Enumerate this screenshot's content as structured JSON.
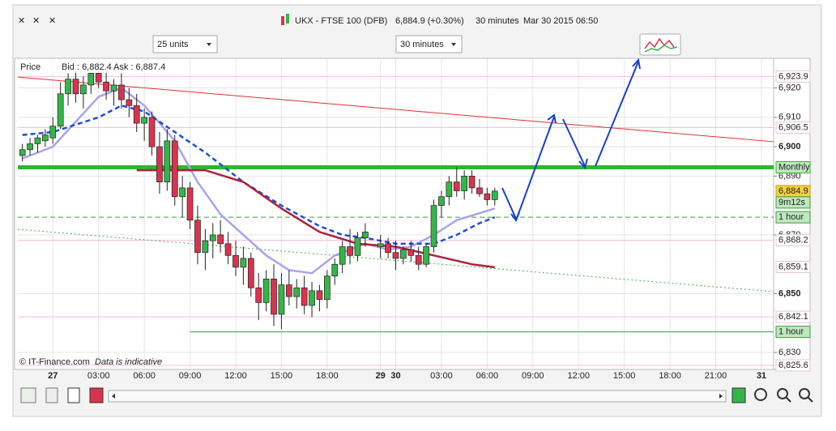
{
  "header": {
    "symbol": "UKX - FTSE 100 (DFB)",
    "quote": "6,884.9 (+0.30%)",
    "interval": "30 minutes",
    "timestamp": "Mar 30 2015 06:50"
  },
  "controls": {
    "units": "25 units",
    "interval": "30 minutes"
  },
  "chart_data": {
    "type": "candlestick",
    "legend": {
      "label": "Price",
      "bid": "Bid : 6,882.4",
      "ask": "Ask : 6,887.4"
    },
    "footer": {
      "copyright": "© IT-Finance.com",
      "note": "Data is indicative"
    },
    "xlim": [
      -4.6,
      94.6
    ],
    "ylim": [
      6824.5,
      6929.8
    ],
    "xticks": [
      {
        "value": 0,
        "label": "27"
      },
      {
        "value": 6,
        "label": "03:00"
      },
      {
        "value": 12,
        "label": "06:00"
      },
      {
        "value": 18,
        "label": "09:00"
      },
      {
        "value": 24,
        "label": "12:00"
      },
      {
        "value": 30,
        "label": "15:00"
      },
      {
        "value": 36,
        "label": "18:00"
      },
      {
        "value": 43,
        "label": "29"
      },
      {
        "value": 45,
        "label": "30"
      },
      {
        "value": 51,
        "label": "03:00"
      },
      {
        "value": 57,
        "label": "06:00"
      },
      {
        "value": 63,
        "label": "09:00"
      },
      {
        "value": 69,
        "label": "12:00"
      },
      {
        "value": 75,
        "label": "15:00"
      },
      {
        "value": 81,
        "label": "18:00"
      },
      {
        "value": 87,
        "label": "21:00"
      },
      {
        "value": 93,
        "label": "31"
      }
    ],
    "yticks": [
      {
        "value": 6920,
        "label": "6,920"
      },
      {
        "value": 6910,
        "label": "6,910"
      },
      {
        "value": 6900,
        "label": "6,900"
      },
      {
        "value": 6890,
        "label": "6,890"
      },
      {
        "value": 6870,
        "label": "6,870"
      },
      {
        "value": 6850,
        "label": "6,850"
      },
      {
        "value": 6830,
        "label": "6,830"
      }
    ],
    "bold_yticks": [
      6900,
      6850
    ],
    "grid": true,
    "up_color": "#35b549",
    "down_color": "#d9344f",
    "candles": {
      "x": [
        -4,
        -3,
        -2,
        -1,
        0,
        1,
        2,
        3,
        4,
        5,
        6,
        7,
        8,
        9,
        10,
        11,
        12,
        13,
        14,
        15,
        16,
        17,
        18,
        19,
        20,
        21,
        22,
        23,
        24,
        25,
        26,
        27,
        28,
        29,
        30,
        31,
        32,
        33,
        34,
        35,
        36,
        37,
        38,
        39,
        40,
        41,
        43,
        44,
        45,
        46,
        47,
        48,
        49,
        50,
        51,
        52,
        53,
        54,
        55,
        56,
        57,
        58
      ],
      "open": [
        6897,
        6899,
        6901,
        6902,
        6903,
        6907,
        6918,
        6923,
        6918,
        6921,
        6925,
        6922,
        6919,
        6921,
        6916,
        6914,
        6908,
        6910,
        6900,
        6888,
        6902,
        6883,
        6886,
        6875,
        6864,
        6868,
        6870,
        6867,
        6863,
        6859,
        6862,
        6852,
        6847,
        6855,
        6843,
        6853,
        6849,
        6852,
        6846,
        6851,
        6848,
        6856,
        6860,
        6866,
        6863,
        6869,
        6866,
        6867,
        6864,
        6862,
        6865,
        6863,
        6860,
        6866,
        6880,
        6883,
        6888,
        6885,
        6890,
        6886,
        6884,
        6882
      ],
      "high": [
        6901,
        6903,
        6904,
        6906,
        6910,
        6922,
        6925,
        6926,
        6924,
        6928,
        6929,
        6926,
        6923,
        6925,
        6920,
        6918,
        6913,
        6912,
        6905,
        6906,
        6904,
        6890,
        6888,
        6880,
        6872,
        6874,
        6875,
        6871,
        6868,
        6866,
        6864,
        6857,
        6858,
        6860,
        6857,
        6858,
        6855,
        6856,
        6854,
        6853,
        6858,
        6862,
        6868,
        6872,
        6871,
        6874,
        6870,
        6869,
        6868,
        6866,
        6868,
        6866,
        6867,
        6882,
        6885,
        6890,
        6893,
        6892,
        6892,
        6889,
        6886,
        6886
      ],
      "low": [
        6895,
        6897,
        6898,
        6900,
        6901,
        6906,
        6914,
        6915,
        6913,
        6918,
        6920,
        6916,
        6914,
        6913,
        6910,
        6905,
        6902,
        6897,
        6884,
        6885,
        6880,
        6876,
        6872,
        6860,
        6858,
        6862,
        6864,
        6860,
        6856,
        6853,
        6849,
        6841,
        6844,
        6839,
        6838,
        6846,
        6845,
        6843,
        6842,
        6844,
        6845,
        6853,
        6857,
        6860,
        6861,
        6866,
        6862,
        6862,
        6858,
        6860,
        6861,
        6858,
        6859,
        6864,
        6876,
        6880,
        6883,
        6882,
        6884,
        6883,
        6880,
        6880
      ],
      "close": [
        6899,
        6901,
        6903,
        6904,
        6907,
        6918,
        6923,
        6918,
        6921,
        6925,
        6922,
        6919,
        6921,
        6916,
        6914,
        6908,
        6910,
        6900,
        6888,
        6902,
        6883,
        6886,
        6875,
        6864,
        6868,
        6870,
        6867,
        6863,
        6859,
        6862,
        6852,
        6847,
        6855,
        6843,
        6853,
        6849,
        6852,
        6846,
        6851,
        6848,
        6856,
        6860,
        6866,
        6863,
        6869,
        6871,
        6867,
        6864,
        6862,
        6865,
        6863,
        6860,
        6866,
        6880,
        6883,
        6888,
        6885,
        6890,
        6886,
        6884,
        6882,
        6884.9
      ]
    },
    "overlays": [
      {
        "color": "#a9a3ea",
        "style": "solid",
        "x": [
          -4,
          0,
          6,
          9,
          12,
          16,
          19,
          22,
          25,
          28,
          31,
          34,
          37,
          41,
          44,
          47,
          50,
          53,
          58
        ],
        "values": [
          6896,
          6900,
          6917,
          6920,
          6914,
          6902,
          6888,
          6877,
          6870,
          6863,
          6858,
          6857,
          6863,
          6867,
          6865,
          6866,
          6870,
          6875,
          6879
        ]
      },
      {
        "color": "#1d4fd6",
        "style": "dashed",
        "x": [
          -4,
          0,
          6,
          9,
          12,
          16,
          20,
          25,
          30,
          35,
          38,
          41,
          45,
          50,
          53,
          56,
          58
        ],
        "values": [
          6904,
          6905,
          6910,
          6914,
          6912,
          6905,
          6898,
          6888,
          6880,
          6873,
          6870,
          6869,
          6867,
          6867,
          6870,
          6874,
          6876
        ]
      },
      {
        "color": "#b0203a",
        "style": "solid",
        "x": [
          11,
          20,
          25,
          30,
          35,
          40,
          45,
          50,
          55,
          58
        ],
        "values": [
          6892,
          6892,
          6888,
          6879,
          6871,
          6867,
          6866,
          6863,
          6860,
          6859
        ]
      }
    ],
    "trendlines": [
      {
        "color": "#e03030",
        "style": "solid",
        "x": [
          -4.6,
          94.6
        ],
        "values": [
          6923.7,
          6901.7
        ]
      },
      {
        "color": "#4ab04a",
        "style": "dotted",
        "x": [
          -4.6,
          94.6
        ],
        "values": [
          6871.9,
          6850.7
        ]
      }
    ],
    "levels": [
      {
        "name": "Monthly",
        "value": 6893,
        "color": "#2fb52f",
        "style": "thick"
      },
      {
        "name": "1 hour",
        "value": 6876,
        "color": "#3d9a3d",
        "style": "dashed"
      },
      {
        "name": "1 hour",
        "value": 6837,
        "color": "#3d9a3d",
        "style": "solid"
      }
    ],
    "price_labels": [
      {
        "value": 6923.9,
        "label": "6,923.9",
        "color": "#f07ad0",
        "background": "#ffffff"
      },
      {
        "value": 6906.5,
        "label": "6,906.5",
        "color": "#f07ad0",
        "background": "#ffffff"
      },
      {
        "value": 6884.9,
        "label": "6,884.9",
        "color": "#222222",
        "background": "#f5d142"
      },
      {
        "value": 6868.2,
        "label": "6,868.2",
        "color": "#f07ad0",
        "background": "#ffffff"
      },
      {
        "value": 6859.1,
        "label": "6,859.1",
        "color": "#c0203a",
        "background": "#ffffff"
      },
      {
        "value": 6842.1,
        "label": "6,842.1",
        "color": "#f07ad0",
        "background": "#ffffff"
      },
      {
        "value": 6825.6,
        "label": "6,825.6",
        "color": "#f07ad0",
        "background": "#ffffff"
      }
    ],
    "countdown": "9m12s"
  }
}
